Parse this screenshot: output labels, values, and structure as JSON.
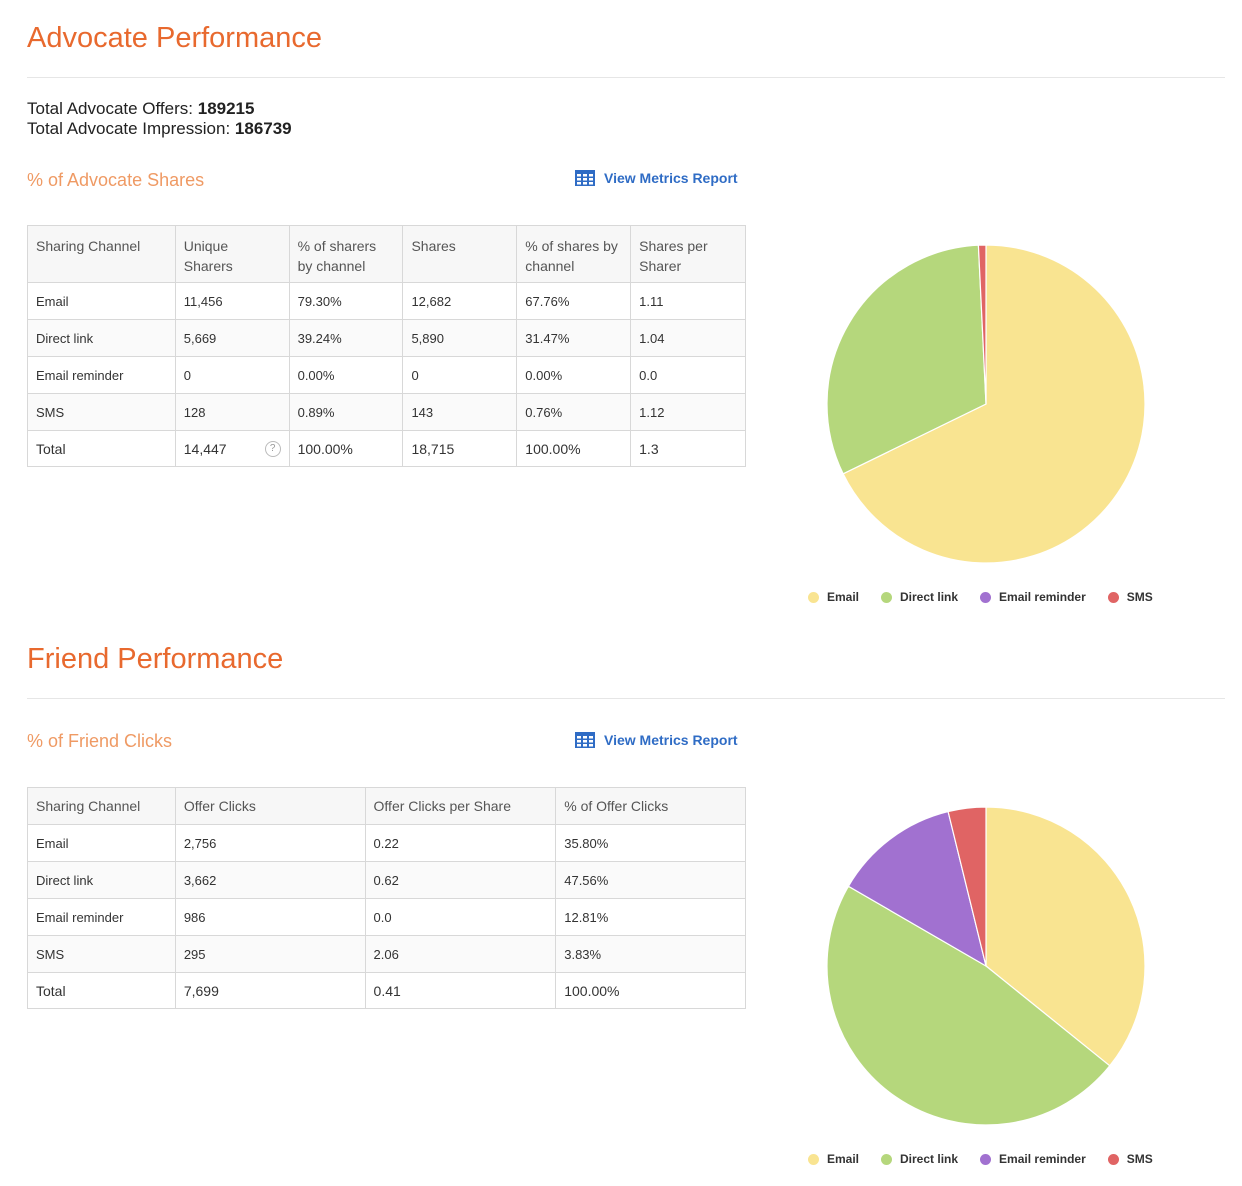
{
  "advocate": {
    "title": "Advocate Performance",
    "offers_label": "Total Advocate Offers:",
    "offers_value": "189215",
    "impression_label": "Total Advocate Impression:",
    "impression_value": "186739",
    "shares_title": "% of Advocate Shares",
    "report_link": "View Metrics Report",
    "table": {
      "headers": [
        "Sharing Channel",
        "Unique Sharers",
        "% of sharers by channel",
        "Shares",
        "% of shares by channel",
        "Shares per Sharer"
      ],
      "rows": [
        [
          "Email",
          "11,456",
          "79.30%",
          "12,682",
          "67.76%",
          "1.11"
        ],
        [
          "Direct link",
          "5,669",
          "39.24%",
          "5,890",
          "31.47%",
          "1.04"
        ],
        [
          "Email reminder",
          "0",
          "0.00%",
          "0",
          "0.00%",
          "0.0"
        ],
        [
          "SMS",
          "128",
          "0.89%",
          "143",
          "0.76%",
          "1.12"
        ],
        [
          "Total",
          "14,447",
          "100.00%",
          "18,715",
          "100.00%",
          "1.3"
        ]
      ],
      "help_icon": "question-circle-icon"
    }
  },
  "friend": {
    "title": "Friend Performance",
    "clicks_title": "% of Friend Clicks",
    "report_link": "View Metrics Report",
    "table": {
      "headers": [
        "Sharing Channel",
        "Offer Clicks",
        "Offer Clicks per Share",
        "% of Offer Clicks"
      ],
      "rows": [
        [
          "Email",
          "2,756",
          "0.22",
          "35.80%"
        ],
        [
          "Direct link",
          "3,662",
          "0.62",
          "47.56%"
        ],
        [
          "Email reminder",
          "986",
          "0.0",
          "12.81%"
        ],
        [
          "SMS",
          "295",
          "2.06",
          "3.83%"
        ],
        [
          "Total",
          "7,699",
          "0.41",
          "100.00%"
        ]
      ]
    }
  },
  "legend": [
    {
      "label": "Email",
      "color": "#f9e491"
    },
    {
      "label": "Direct link",
      "color": "#b5d77c"
    },
    {
      "label": "Email reminder",
      "color": "#a171d0"
    },
    {
      "label": "SMS",
      "color": "#e06464"
    }
  ],
  "chart_data": [
    {
      "type": "pie",
      "categories": [
        "Email",
        "Direct link",
        "Email reminder",
        "SMS"
      ],
      "values": [
        67.76,
        31.47,
        0.0,
        0.76
      ],
      "colors": [
        "#f9e491",
        "#b5d77c",
        "#a171d0",
        "#e06464"
      ]
    },
    {
      "type": "pie",
      "categories": [
        "Email",
        "Direct link",
        "Email reminder",
        "SMS"
      ],
      "values": [
        35.8,
        47.56,
        12.81,
        3.83
      ],
      "colors": [
        "#f9e491",
        "#b5d77c",
        "#a171d0",
        "#e06464"
      ]
    }
  ]
}
